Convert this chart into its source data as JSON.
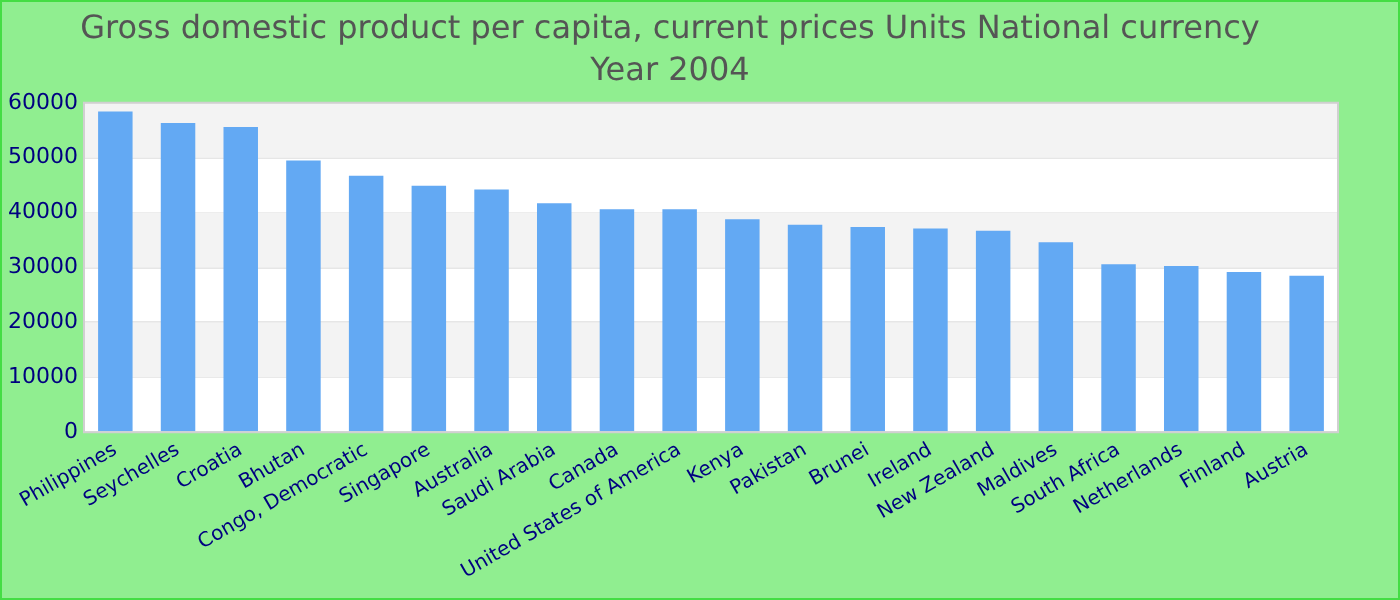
{
  "chart_data": {
    "type": "bar",
    "title": "Gross domestic product per capita, current prices Units National currency",
    "subtitle": "Year 2004",
    "categories": [
      "Philippines",
      "Seychelles",
      "Croatia",
      "Bhutan",
      "Congo, Democratic",
      "Singapore",
      "Australia",
      "Saudi Arabia",
      "Canada",
      "United States of America",
      "Kenya",
      "Pakistan",
      "Brunei",
      "Ireland",
      "New Zealand",
      "Maldives",
      "South Africa",
      "Netherlands",
      "Finland",
      "Austria"
    ],
    "values": [
      58400,
      56300,
      55600,
      49500,
      46700,
      44900,
      44200,
      41700,
      40600,
      40600,
      38800,
      37800,
      37400,
      37100,
      36700,
      34600,
      30600,
      30300,
      29200,
      28500
    ],
    "color": "#63a9f3",
    "ylim": [
      0,
      60000
    ],
    "yticks": [
      0,
      10000,
      20000,
      30000,
      40000,
      50000,
      60000
    ],
    "grid": "y",
    "legend": false
  }
}
